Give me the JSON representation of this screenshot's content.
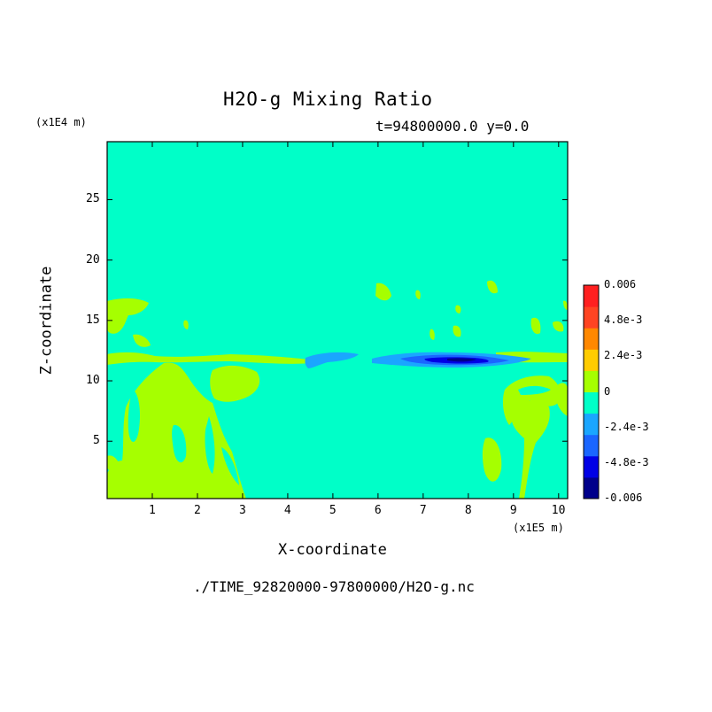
{
  "chart_data": {
    "type": "heatmap",
    "title": "H2O-g Mixing Ratio",
    "subtitle": "t=94800000.0 y=0.0",
    "xlabel": "X-coordinate",
    "ylabel": "Z-coordinate",
    "x_unit": "(x1E5 m)",
    "y_unit": "(x1E4 m)",
    "xlim": [
      0,
      10.2
    ],
    "ylim": [
      0.25,
      29.8
    ],
    "x_ticks": [
      "1",
      "2",
      "3",
      "4",
      "5",
      "6",
      "7",
      "8",
      "9",
      "10"
    ],
    "y_ticks": [
      "5",
      "10",
      "15",
      "20",
      "25"
    ],
    "footer": "./TIME_92820000-97800000/H2O-g.nc",
    "colorbar": {
      "range": [
        -0.006,
        0.006
      ],
      "labels": [
        "0.006",
        "4.8e-3",
        "2.4e-3",
        "0",
        "-2.4e-3",
        "-4.8e-3",
        "-0.006"
      ],
      "colors": [
        "#00008b",
        "#0000e6",
        "#1a66ff",
        "#1aa6ff",
        "#00ffc8",
        "#a6ff00",
        "#ffcc00",
        "#ff8800",
        "#ff4422",
        "#ff2020"
      ]
    },
    "background_color": "#00ffc8"
  }
}
